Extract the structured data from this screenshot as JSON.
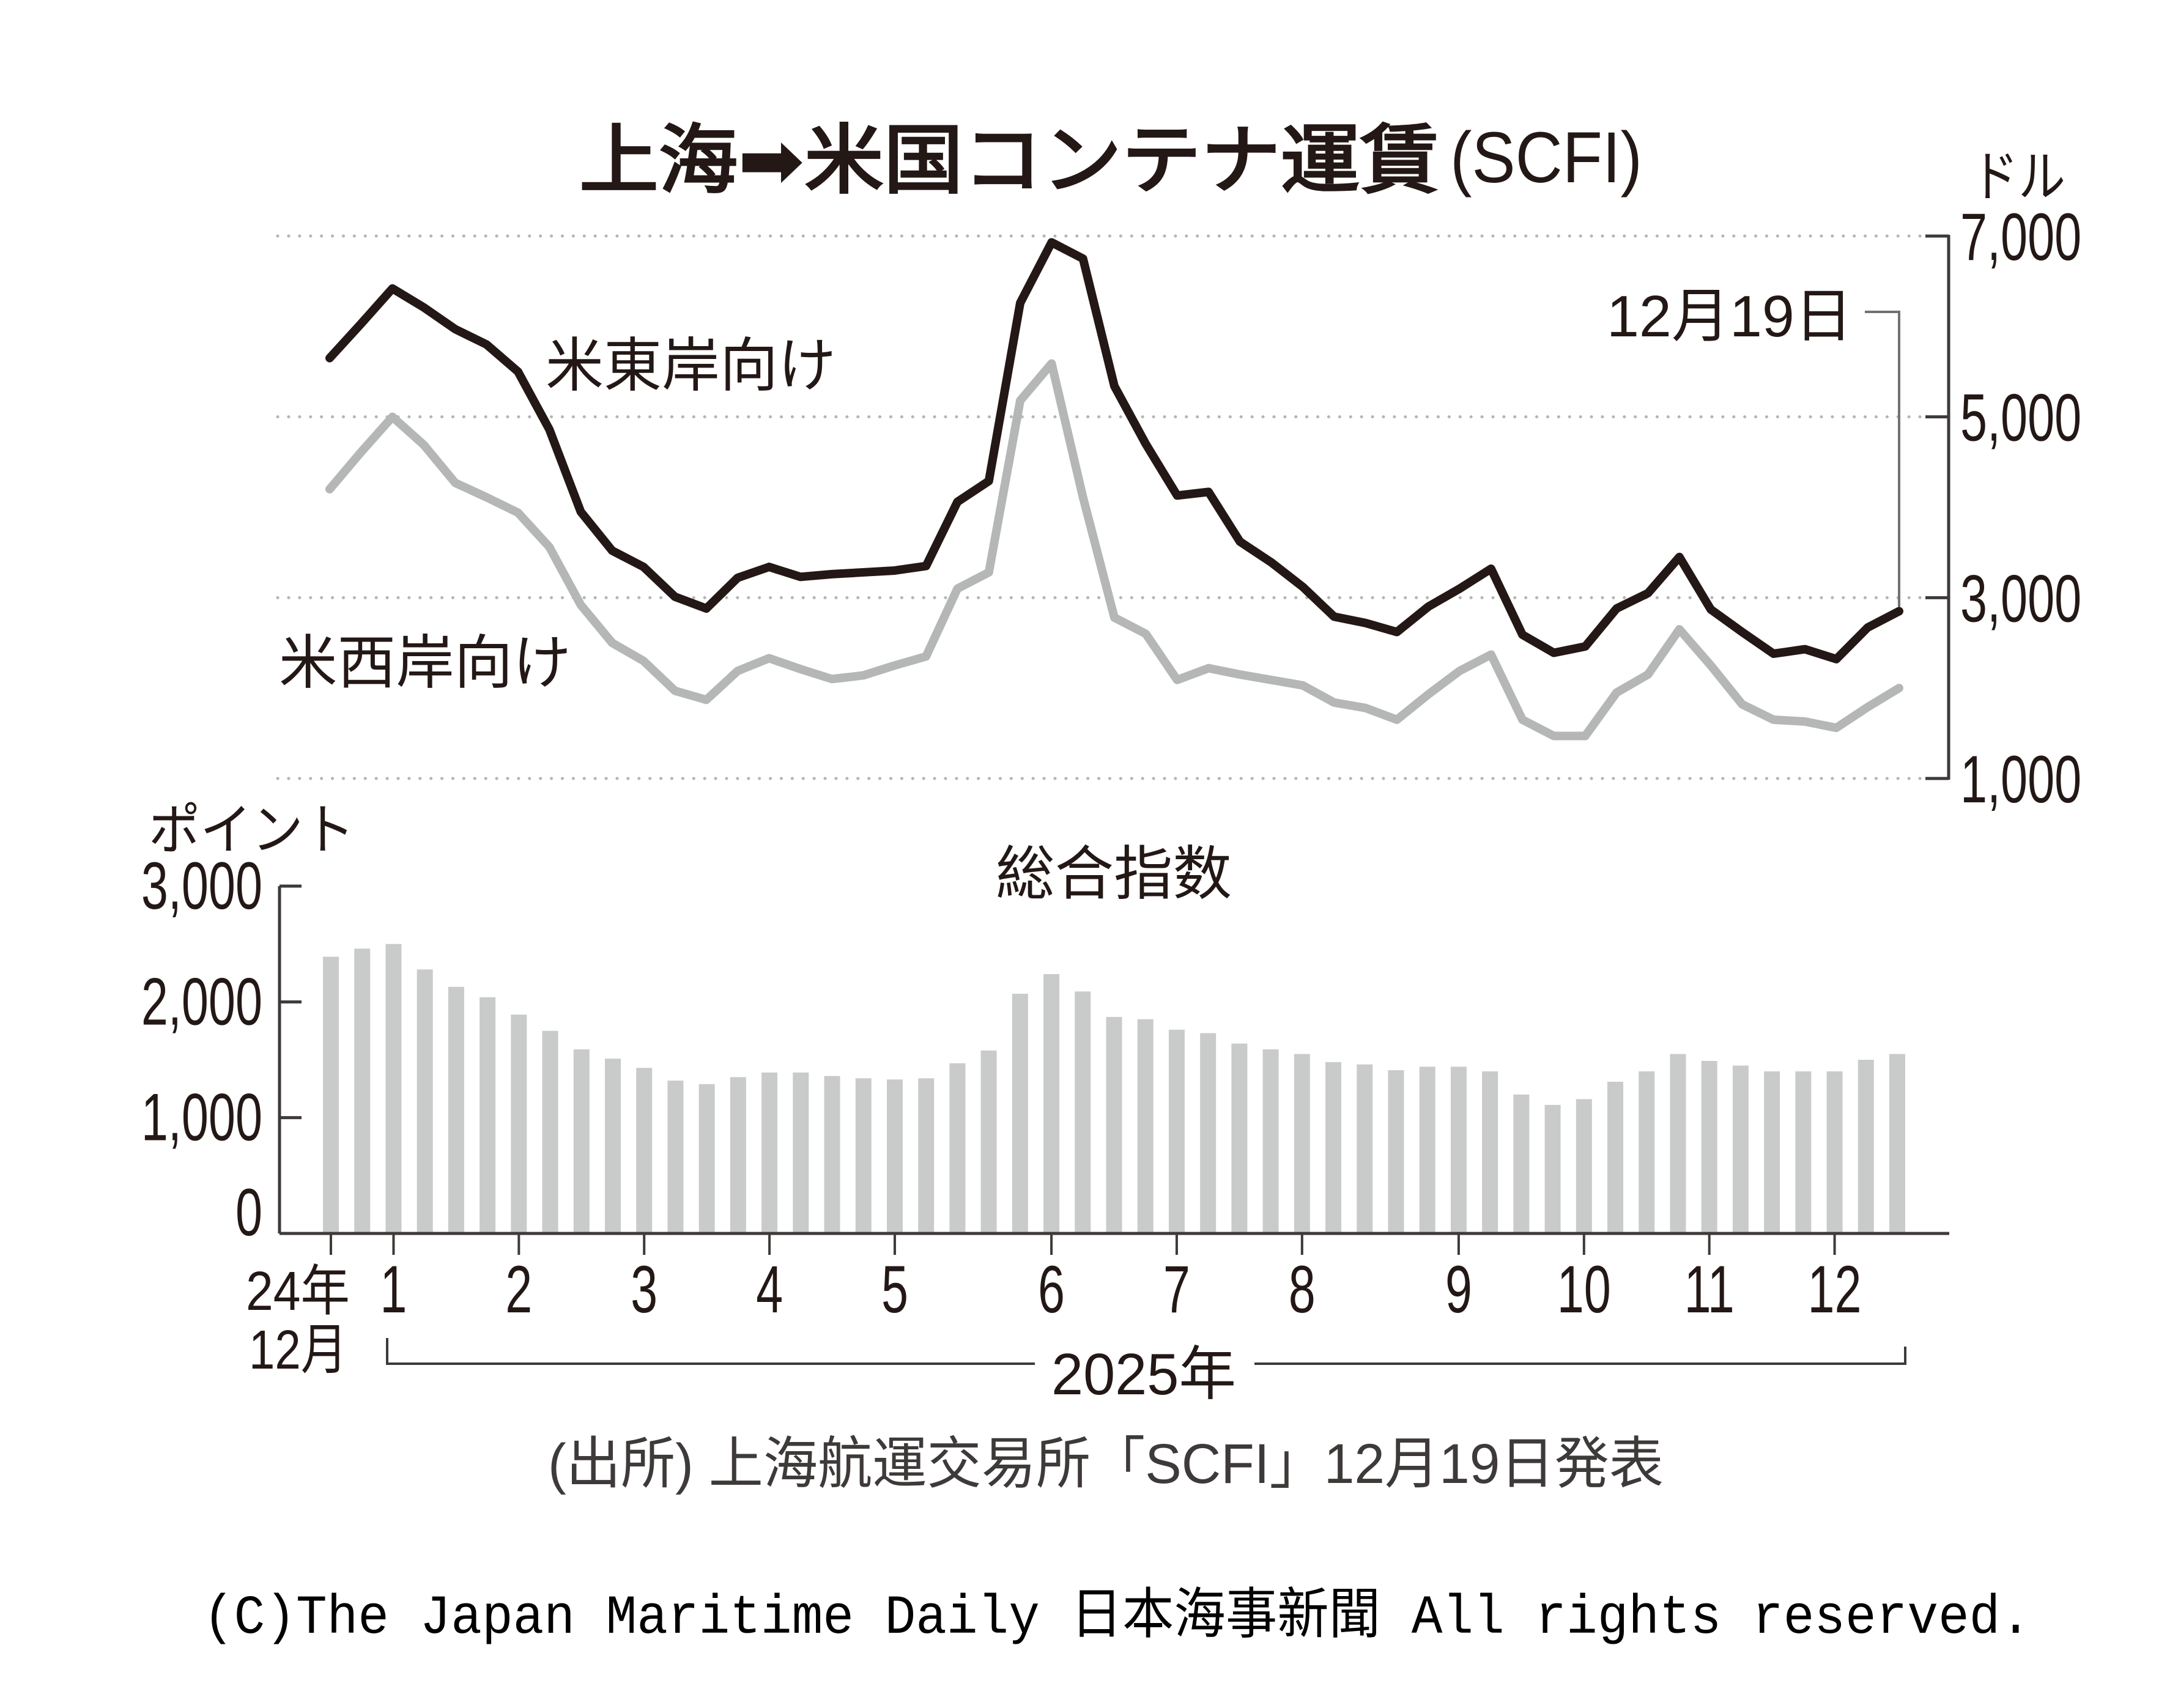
{
  "title": {
    "main": "上海➡米国コンテナ運賃",
    "suffix": "(SCFI)"
  },
  "chart_data": [
    {
      "type": "line",
      "title": "上海➡米国コンテナ運賃(SCFI)",
      "ylabel": "ドル",
      "xlabel": "",
      "ylim": [
        1000,
        7000
      ],
      "yticks": [
        7000,
        5000,
        3000,
        1000
      ],
      "ytick_labels": [
        "7,000",
        "5,000",
        "3,000",
        "1,000"
      ],
      "yaxis_side": "right",
      "grid": true,
      "legend": "inline labels (top-left area)",
      "series": [
        {
          "name": "米東岸向け",
          "color": "#231815",
          "values": [
            5650,
            6030,
            6420,
            6210,
            5970,
            5800,
            5500,
            4860,
            3950,
            3520,
            3340,
            3010,
            2880,
            3220,
            3340,
            3230,
            3260,
            3280,
            3300,
            3350,
            4060,
            4290,
            6260,
            6930,
            6750,
            5340,
            4700,
            4130,
            4170,
            3620,
            3390,
            3120,
            2790,
            2720,
            2620,
            2900,
            3100,
            3320,
            2590,
            2390,
            2460,
            2880,
            3050,
            3450,
            2870,
            2620,
            2380,
            2430,
            2320,
            2670,
            2850
          ]
        },
        {
          "name": "米西岸向け",
          "color": "#b5b6b6",
          "values": [
            4200,
            4610,
            5000,
            4690,
            4270,
            4110,
            3940,
            3560,
            2920,
            2500,
            2300,
            1970,
            1870,
            2190,
            2330,
            2210,
            2100,
            2140,
            2250,
            2350,
            3100,
            3280,
            5180,
            5590,
            4110,
            2780,
            2600,
            2090,
            2220,
            2150,
            2090,
            2030,
            1840,
            1780,
            1650,
            1930,
            2190,
            2370,
            1650,
            1470,
            1470,
            1950,
            2150,
            2650,
            2250,
            1820,
            1650,
            1630,
            1560,
            1790,
            2000
          ]
        }
      ],
      "annotation": {
        "text": "12月19日",
        "series_index": 0,
        "point_index": 50
      }
    },
    {
      "type": "bar",
      "title": "総合指数",
      "ylabel": "ポイント",
      "xlabel": "2025年",
      "ylim": [
        0,
        3000
      ],
      "yticks": [
        3000,
        2000,
        1000,
        0
      ],
      "ytick_labels": [
        "3,000",
        "2,000",
        "1,000",
        "0"
      ],
      "grid": false,
      "color": "#c9caca",
      "values": [
        2390,
        2460,
        2500,
        2280,
        2130,
        2040,
        1890,
        1750,
        1590,
        1510,
        1430,
        1320,
        1290,
        1350,
        1390,
        1390,
        1360,
        1340,
        1330,
        1340,
        1470,
        1580,
        2070,
        2240,
        2090,
        1870,
        1850,
        1760,
        1730,
        1640,
        1590,
        1550,
        1480,
        1460,
        1410,
        1440,
        1440,
        1400,
        1200,
        1110,
        1160,
        1310,
        1400,
        1550,
        1490,
        1450,
        1400,
        1400,
        1400,
        1500,
        1550
      ],
      "xticks": {
        "start": {
          "index": 0,
          "label_lines": [
            "24年",
            "12月"
          ]
        },
        "months": [
          {
            "index": 2,
            "label": "1"
          },
          {
            "index": 6,
            "label": "2"
          },
          {
            "index": 10,
            "label": "3"
          },
          {
            "index": 14,
            "label": "4"
          },
          {
            "index": 18,
            "label": "5"
          },
          {
            "index": 23,
            "label": "6"
          },
          {
            "index": 27,
            "label": "7"
          },
          {
            "index": 31,
            "label": "8"
          },
          {
            "index": 36,
            "label": "9"
          },
          {
            "index": 40,
            "label": "10"
          },
          {
            "index": 44,
            "label": "11"
          },
          {
            "index": 48,
            "label": "12"
          }
        ]
      }
    }
  ],
  "source": "(出所) 上海航運交易所「SCFI」12月19日発表",
  "copyright": "(C)The Japan Maritime Daily 日本海事新聞 All rights reserved."
}
